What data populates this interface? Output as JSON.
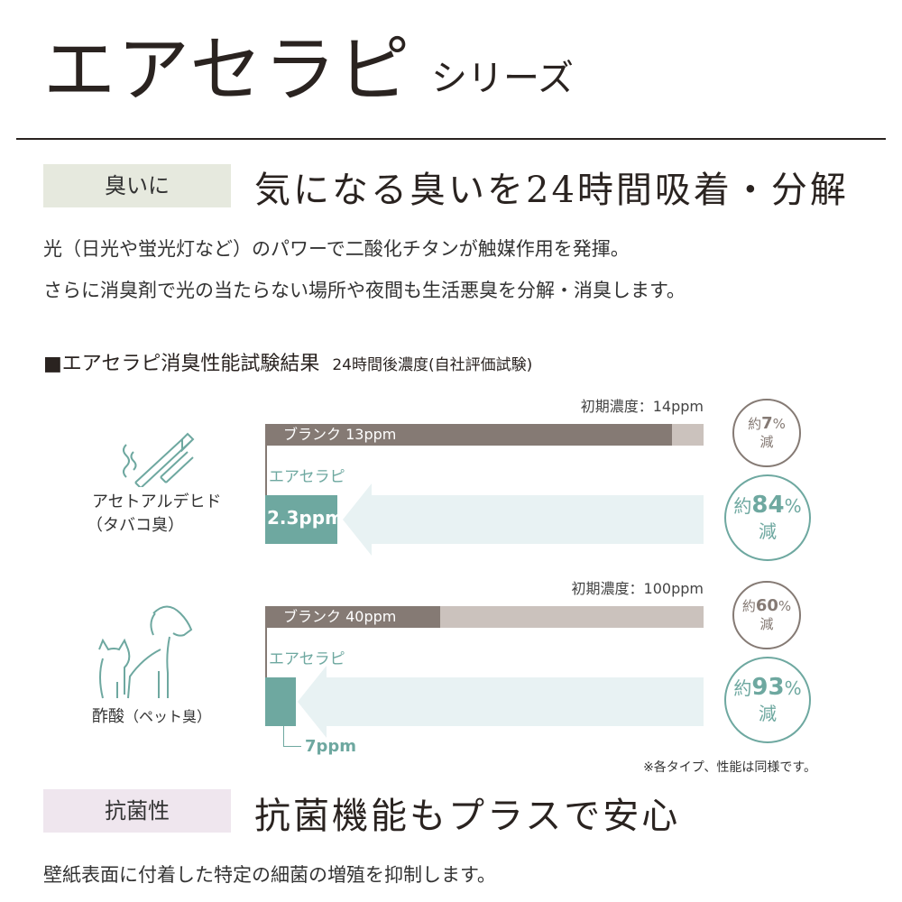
{
  "header": {
    "title": "エアセラピ",
    "subtitle": "シリーズ"
  },
  "odor": {
    "tag": "臭いに",
    "heading": "気になる臭いを24時間吸着・分解",
    "para1": "光（日光や蛍光灯など）のパワーで二酸化チタンが触媒作用を発揮。",
    "para2": "さらに消臭剤で光の当たらない場所や夜間も生活悪臭を分解・消臭します。"
  },
  "test": {
    "title": "■エアセラピ消臭性能試験結果",
    "note": "24時間後濃度(自社評価試験)",
    "items": [
      {
        "name": "アセトアルデヒド",
        "paren": "（タバコ臭）",
        "icon": "cigarette-icon",
        "initial_label": "初期濃度：14ppm",
        "initial": 14,
        "blank_label": "ブランク 13ppm",
        "blank": 13,
        "product_label": "エアセラピ",
        "product_value_label": "2.3ppm",
        "product": 2.3,
        "blank_reduce_pre": "約",
        "blank_reduce": "7",
        "blank_reduce_post": "%",
        "reduce_suffix": "減",
        "product_reduce_pre": "約",
        "product_reduce": "84",
        "product_reduce_post": "%"
      },
      {
        "name": "酢酸",
        "paren": "（ペット臭）",
        "icon": "dog-cat-icon",
        "initial_label": "初期濃度：100ppm",
        "initial": 100,
        "blank_label": "ブランク 40ppm",
        "blank": 40,
        "product_label": "エアセラピ",
        "product_value_label": "7ppm",
        "product": 7,
        "blank_reduce_pre": "約",
        "blank_reduce": "60",
        "blank_reduce_post": "%",
        "reduce_suffix": "減",
        "product_reduce_pre": "約",
        "product_reduce": "93",
        "product_reduce_post": "%"
      }
    ],
    "footnote": "※各タイプ、性能は同様です。"
  },
  "antibac": {
    "tag": "抗菌性",
    "heading": "抗菌機能もプラスで安心",
    "para": "壁紙表面に付着した特定の細菌の増殖を抑制します。"
  },
  "colors": {
    "blank": "#857a74",
    "initial": "#cbc2bd",
    "product": "#6ea8a0",
    "arrow": "#e8f2f3",
    "tag1": "#e6e9de",
    "tag2": "#efe6ee"
  }
}
